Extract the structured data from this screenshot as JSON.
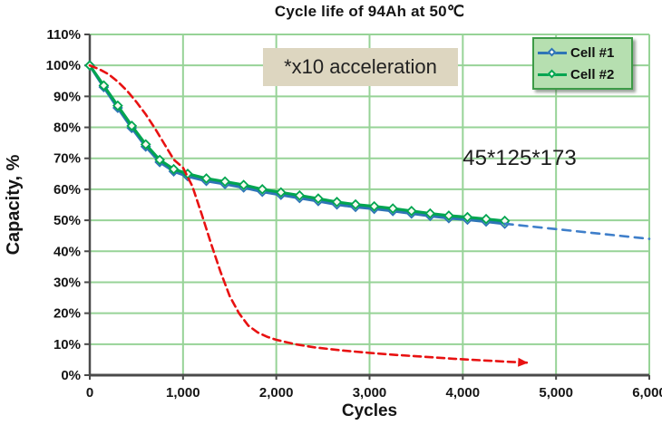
{
  "title": "Cycle life of 94Ah at  50℃",
  "annotations": {
    "acceleration_note": "*x10 acceleration",
    "dimensions_note": "45*125*173"
  },
  "legend": {
    "position": "top-right",
    "items": [
      {
        "label": "Cell #1",
        "color": "#2e75b6"
      },
      {
        "label": "Cell #2",
        "color": "#00a550"
      }
    ]
  },
  "colors": {
    "grid": "#97d397",
    "axis": "#4a4a4a",
    "marker_fill": "#f7faf0",
    "cell1_blue": "#2e75b6",
    "cell2_green": "#00a550",
    "projection_blue": "#3f7fca",
    "reference_red": "#e81212",
    "legend_bg": "#b6dfb0",
    "legend_border": "#3d9b47",
    "annotation_bg": "#ddd6c0"
  },
  "chart_data": {
    "type": "line",
    "title": "Cycle life of 94Ah at 50℃",
    "xlabel": "Cycles",
    "ylabel": "Capacity, %",
    "xlim": [
      0,
      6000
    ],
    "ylim": [
      0,
      110
    ],
    "grid": true,
    "legend_position": "top-right",
    "x_ticks": [
      {
        "v": 0,
        "label": "0"
      },
      {
        "v": 1000,
        "label": "1,000"
      },
      {
        "v": 2000,
        "label": "2,000"
      },
      {
        "v": 3000,
        "label": "3,000"
      },
      {
        "v": 4000,
        "label": "4,000"
      },
      {
        "v": 5000,
        "label": "5,000"
      },
      {
        "v": 6000,
        "label": "6,000"
      }
    ],
    "y_ticks": [
      {
        "v": 0,
        "label": "0%"
      },
      {
        "v": 10,
        "label": "10%"
      },
      {
        "v": 20,
        "label": "20%"
      },
      {
        "v": 30,
        "label": "30%"
      },
      {
        "v": 40,
        "label": "40%"
      },
      {
        "v": 50,
        "label": "50%"
      },
      {
        "v": 60,
        "label": "60%"
      },
      {
        "v": 70,
        "label": "70%"
      },
      {
        "v": 80,
        "label": "80%"
      },
      {
        "v": 90,
        "label": "90%"
      },
      {
        "v": 100,
        "label": "100%"
      },
      {
        "v": 110,
        "label": "110%"
      }
    ],
    "series": [
      {
        "name": "Cell #1",
        "color": "#2e75b6",
        "style": "solid",
        "markers": true,
        "points": [
          [
            0,
            100
          ],
          [
            150,
            93
          ],
          [
            300,
            86.3
          ],
          [
            450,
            79.8
          ],
          [
            600,
            73.8
          ],
          [
            750,
            68.8
          ],
          [
            900,
            65.8
          ],
          [
            1050,
            64.2
          ],
          [
            1250,
            62.7
          ],
          [
            1450,
            61.7
          ],
          [
            1650,
            60.6
          ],
          [
            1850,
            59.2
          ],
          [
            2050,
            58.2
          ],
          [
            2250,
            57.2
          ],
          [
            2450,
            56.2
          ],
          [
            2650,
            55.1
          ],
          [
            2850,
            54.3
          ],
          [
            3050,
            53.7
          ],
          [
            3250,
            53
          ],
          [
            3450,
            52.2
          ],
          [
            3650,
            51.4
          ],
          [
            3850,
            50.7
          ],
          [
            4050,
            50.2
          ],
          [
            4250,
            49.6
          ],
          [
            4450,
            48.9
          ]
        ]
      },
      {
        "name": "Cell #2",
        "color": "#00a550",
        "style": "solid",
        "markers": true,
        "points": [
          [
            0,
            100
          ],
          [
            150,
            93.5
          ],
          [
            300,
            87
          ],
          [
            450,
            80.5
          ],
          [
            600,
            74.5
          ],
          [
            750,
            69.5
          ],
          [
            900,
            66.5
          ],
          [
            1050,
            65
          ],
          [
            1250,
            63.5
          ],
          [
            1450,
            62.5
          ],
          [
            1650,
            61.4
          ],
          [
            1850,
            60
          ],
          [
            2050,
            59
          ],
          [
            2250,
            58
          ],
          [
            2450,
            57
          ],
          [
            2650,
            55.9
          ],
          [
            2850,
            55.1
          ],
          [
            3050,
            54.5
          ],
          [
            3250,
            53.8
          ],
          [
            3450,
            53
          ],
          [
            3650,
            52.2
          ],
          [
            3850,
            51.5
          ],
          [
            4050,
            51
          ],
          [
            4250,
            50.4
          ],
          [
            4450,
            49.8
          ]
        ]
      },
      {
        "name": "Cell #1 projection",
        "color": "#3f7fca",
        "style": "dashed",
        "markers": false,
        "points": [
          [
            4450,
            48.9
          ],
          [
            6000,
            44
          ]
        ]
      },
      {
        "name": "x10 accelerated reference",
        "color": "#e81212",
        "style": "dashed-arrow",
        "markers": false,
        "points": [
          [
            0,
            100
          ],
          [
            100,
            98.8
          ],
          [
            200,
            97.2
          ],
          [
            300,
            94.8
          ],
          [
            400,
            91.8
          ],
          [
            500,
            88.2
          ],
          [
            600,
            84.2
          ],
          [
            700,
            79.6
          ],
          [
            800,
            74.6
          ],
          [
            900,
            69.6
          ],
          [
            1000,
            67
          ],
          [
            1100,
            61
          ],
          [
            1200,
            52
          ],
          [
            1300,
            42.5
          ],
          [
            1400,
            33.5
          ],
          [
            1500,
            25.5
          ],
          [
            1600,
            20
          ],
          [
            1700,
            16
          ],
          [
            1800,
            13.8
          ],
          [
            1900,
            12.4
          ],
          [
            2000,
            11.4
          ],
          [
            2200,
            10
          ],
          [
            2400,
            9
          ],
          [
            2700,
            8
          ],
          [
            3000,
            7.2
          ],
          [
            3300,
            6.5
          ],
          [
            3600,
            5.9
          ],
          [
            3900,
            5.3
          ],
          [
            4200,
            4.8
          ],
          [
            4500,
            4.3
          ],
          [
            4700,
            4
          ]
        ]
      }
    ]
  }
}
